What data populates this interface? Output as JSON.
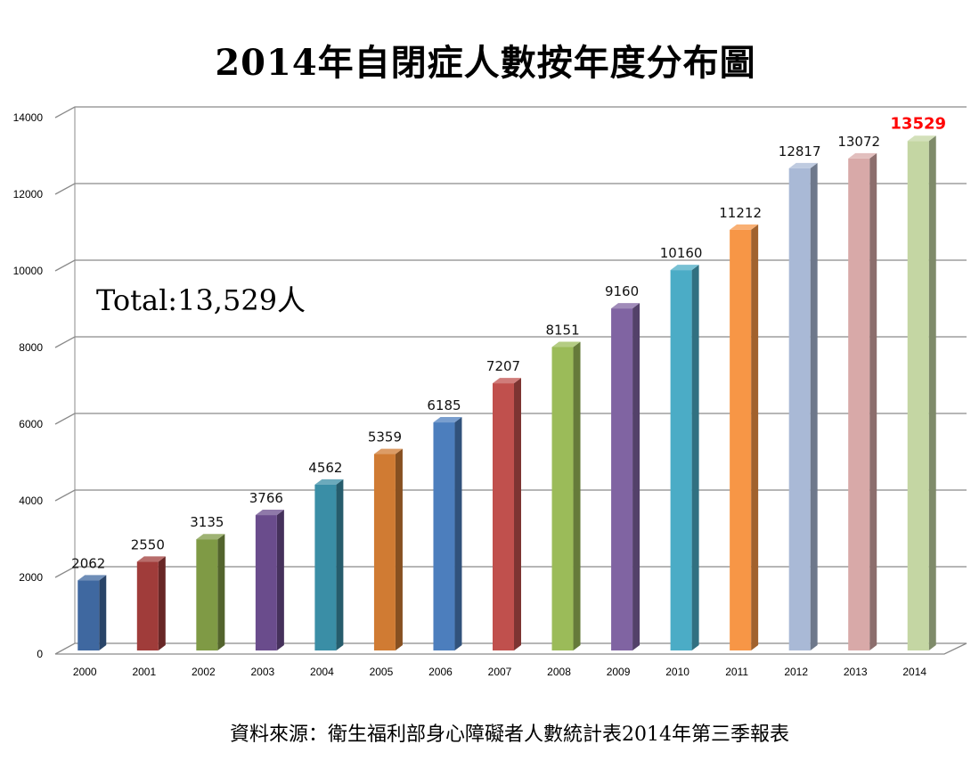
{
  "title": "2014年自閉症人數按年度分布圖",
  "total_label": "Total:13,529人",
  "source": "資料來源：衛生福利部身心障礙者人數統計表2014年第三季報表",
  "chart_data": {
    "type": "bar",
    "title": "2014年自閉症人數按年度分布圖",
    "xlabel": "",
    "ylabel": "",
    "ylim": [
      0,
      14000
    ],
    "yticks": [
      0,
      2000,
      4000,
      6000,
      8000,
      10000,
      12000,
      14000
    ],
    "grid": true,
    "categories": [
      "2000",
      "2001",
      "2002",
      "2003",
      "2004",
      "2005",
      "2006",
      "2007",
      "2008",
      "2009",
      "2010",
      "2011",
      "2012",
      "2013",
      "2014"
    ],
    "values": [
      2062,
      2550,
      3135,
      3766,
      4562,
      5359,
      6185,
      7207,
      8151,
      9160,
      10160,
      11212,
      12817,
      13072,
      13529
    ],
    "colors": [
      "#3f68a0",
      "#a03c3a",
      "#7f9a45",
      "#6a4c8c",
      "#3a8ea6",
      "#d07b33",
      "#4c7ebd",
      "#c0504d",
      "#9bbb59",
      "#8064a2",
      "#4bacc6",
      "#f79646",
      "#a9b9d6",
      "#d8a9a8",
      "#c4d6a3"
    ],
    "highlight": {
      "category": "2014",
      "color": "#ff0000"
    }
  }
}
